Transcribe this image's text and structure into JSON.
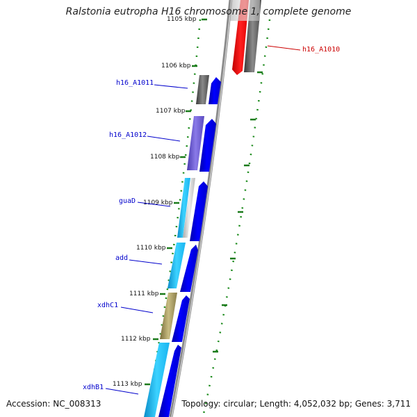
{
  "title": "Ralstonia eutropha H16 chromosome 1, complete genome",
  "accession": "Accession: NC_008313",
  "summary": "Topology: circular; Length: 4,052,032 bp; Genes: 3,711",
  "colors": {
    "backbone": "#8a8a8a",
    "tick": "#1a7a1a",
    "forward_gene": "#0000ee",
    "cyan_gene": "#19b4f0",
    "purple_gene": "#6a5acd",
    "olive_gene": "#a89a5a",
    "gray_gene": "#555555",
    "red_gene": "#ff0000",
    "label_blue": "#0000cc",
    "label_red": "#cc0000"
  },
  "ticks": [
    {
      "label": "1105 kbp"
    },
    {
      "label": "1106 kbp"
    },
    {
      "label": "1107 kbp"
    },
    {
      "label": "1108 kbp"
    },
    {
      "label": "1109 kbp"
    },
    {
      "label": "1110 kbp"
    },
    {
      "label": "1111 kbp"
    },
    {
      "label": "1112 kbp"
    },
    {
      "label": "1113 kbp"
    }
  ],
  "genes": [
    {
      "name": "h16_A1010",
      "color": "red"
    },
    {
      "name": "h16_A1011",
      "color": "blue"
    },
    {
      "name": "h16_A1012",
      "color": "blue"
    },
    {
      "name": "guaD",
      "color": "blue"
    },
    {
      "name": "add",
      "color": "blue"
    },
    {
      "name": "xdhC1",
      "color": "blue"
    },
    {
      "name": "xdhB1",
      "color": "blue"
    }
  ]
}
